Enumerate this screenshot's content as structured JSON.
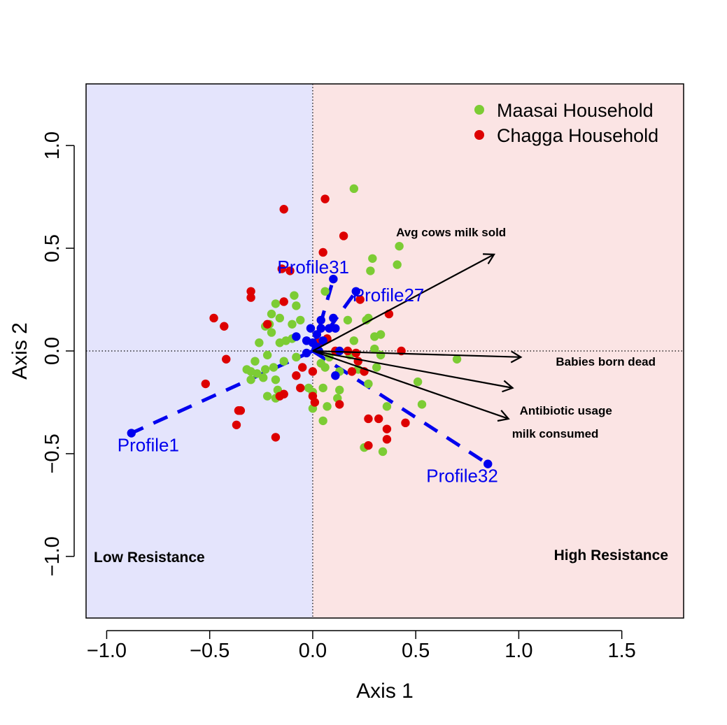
{
  "chart_data": {
    "type": "scatter",
    "xlabel": "Axis 1",
    "ylabel": "Axis 2",
    "xlim": [
      -1.1,
      1.8
    ],
    "ylim": [
      -1.3,
      1.3
    ],
    "x_ticks": [
      -1.0,
      -0.5,
      0.0,
      0.5,
      1.0,
      1.5
    ],
    "x_tick_labels": [
      "−1.0",
      "−0.5",
      "0.0",
      "0.5",
      "1.0",
      "1.5"
    ],
    "y_ticks": [
      -1.0,
      -0.5,
      0.0,
      0.5,
      1.0
    ],
    "y_tick_labels": [
      "−1.0",
      "−0.5",
      "0.0",
      "0.5",
      "1.0"
    ],
    "grid": false,
    "reference_lines": [
      {
        "axis": "x",
        "value": 0,
        "style": "dotted"
      },
      {
        "axis": "y",
        "value": 0,
        "style": "dotted"
      }
    ],
    "legend_position": "top-right",
    "regions": [
      {
        "label": "Low Resistance",
        "x_range": [
          -1.1,
          0.0
        ],
        "color": "#e4e4fc",
        "label_position": "bottom-left"
      },
      {
        "label": "High Resistance",
        "x_range": [
          0.0,
          1.8
        ],
        "color": "#fbe4e4",
        "label_position": "bottom-right"
      }
    ],
    "series": [
      {
        "name": "Maasai Household",
        "color": "#7ccc34",
        "points": [
          [
            0.2,
            0.79
          ],
          [
            0.29,
            0.45
          ],
          [
            0.42,
            0.51
          ],
          [
            0.41,
            0.42
          ],
          [
            0.28,
            0.39
          ],
          [
            0.06,
            0.29
          ],
          [
            -0.09,
            0.27
          ],
          [
            -0.08,
            0.22
          ],
          [
            -0.18,
            0.23
          ],
          [
            -0.2,
            0.18
          ],
          [
            -0.16,
            0.16
          ],
          [
            -0.06,
            0.15
          ],
          [
            -0.21,
            0.13
          ],
          [
            -0.23,
            0.12
          ],
          [
            -0.1,
            0.13
          ],
          [
            0.27,
            0.16
          ],
          [
            0.26,
            0.15
          ],
          [
            0.17,
            0.15
          ],
          [
            0.33,
            0.08
          ],
          [
            0.3,
            0.07
          ],
          [
            0.2,
            0.05
          ],
          [
            -0.2,
            0.09
          ],
          [
            -0.26,
            0.04
          ],
          [
            -0.16,
            0.04
          ],
          [
            -0.13,
            0.05
          ],
          [
            -0.1,
            0.06
          ],
          [
            -0.22,
            -0.02
          ],
          [
            -0.28,
            -0.05
          ],
          [
            -0.32,
            -0.09
          ],
          [
            -0.3,
            -0.1
          ],
          [
            -0.23,
            -0.09
          ],
          [
            -0.19,
            -0.08
          ],
          [
            -0.14,
            -0.05
          ],
          [
            -0.08,
            -0.03
          ],
          [
            -0.27,
            -0.11
          ],
          [
            -0.24,
            -0.13
          ],
          [
            -0.18,
            -0.14
          ],
          [
            -0.3,
            -0.14
          ],
          [
            -0.17,
            -0.19
          ],
          [
            -0.22,
            -0.22
          ],
          [
            -0.18,
            -0.23
          ],
          [
            0.04,
            -0.06
          ],
          [
            0.06,
            -0.08
          ],
          [
            0.13,
            -0.1
          ],
          [
            0.22,
            -0.09
          ],
          [
            0.31,
            -0.08
          ],
          [
            0.33,
            -0.02
          ],
          [
            0.3,
            0.01
          ],
          [
            0.7,
            -0.04
          ],
          [
            0.51,
            -0.15
          ],
          [
            0.53,
            -0.26
          ],
          [
            0.36,
            -0.27
          ],
          [
            0.27,
            -0.16
          ],
          [
            0.05,
            -0.18
          ],
          [
            0.12,
            -0.23
          ],
          [
            0.07,
            -0.27
          ],
          [
            0.0,
            -0.2
          ],
          [
            0.0,
            -0.28
          ],
          [
            0.05,
            -0.34
          ],
          [
            0.25,
            -0.47
          ],
          [
            0.34,
            -0.49
          ],
          [
            0.13,
            -0.19
          ],
          [
            -0.02,
            -0.18
          ],
          [
            0.18,
            -0.02
          ],
          [
            0.08,
            -0.03
          ]
        ]
      },
      {
        "name": "Chagga Household",
        "color": "#dd0000",
        "points": [
          [
            0.06,
            0.74
          ],
          [
            -0.14,
            0.69
          ],
          [
            0.15,
            0.56
          ],
          [
            0.05,
            0.48
          ],
          [
            -0.15,
            0.4
          ],
          [
            -0.11,
            0.39
          ],
          [
            -0.3,
            0.29
          ],
          [
            -0.3,
            0.26
          ],
          [
            0.23,
            0.25
          ],
          [
            -0.14,
            0.24
          ],
          [
            -0.48,
            0.16
          ],
          [
            -0.43,
            0.12
          ],
          [
            -0.22,
            0.13
          ],
          [
            0.37,
            0.18
          ],
          [
            0.07,
            0.06
          ],
          [
            0.03,
            0.04
          ],
          [
            0.11,
            0.0
          ],
          [
            0.17,
            0.0
          ],
          [
            0.21,
            -0.01
          ],
          [
            0.43,
            0.0
          ],
          [
            0.22,
            -0.05
          ],
          [
            -0.05,
            -0.08
          ],
          [
            0.0,
            -0.1
          ],
          [
            -0.42,
            -0.04
          ],
          [
            -0.52,
            -0.16
          ],
          [
            -0.08,
            -0.12
          ],
          [
            -0.06,
            -0.18
          ],
          [
            -0.14,
            -0.21
          ],
          [
            -0.16,
            -0.22
          ],
          [
            0.0,
            -0.22
          ],
          [
            0.01,
            -0.25
          ],
          [
            -0.35,
            -0.29
          ],
          [
            -0.36,
            -0.29
          ],
          [
            -0.37,
            -0.36
          ],
          [
            -0.18,
            -0.42
          ],
          [
            0.27,
            -0.33
          ],
          [
            0.32,
            -0.33
          ],
          [
            0.36,
            -0.38
          ],
          [
            0.36,
            -0.43
          ],
          [
            0.45,
            -0.35
          ],
          [
            0.27,
            -0.46
          ],
          [
            0.13,
            -0.26
          ],
          [
            0.19,
            -0.1
          ],
          [
            0.25,
            -0.1
          ]
        ]
      },
      {
        "name": "",
        "color": "#0000ee",
        "points": [
          [
            -0.88,
            -0.4
          ],
          [
            0.85,
            -0.55
          ],
          [
            0.1,
            0.35
          ],
          [
            0.21,
            0.29
          ],
          [
            -0.08,
            0.07
          ],
          [
            -0.01,
            0.11
          ],
          [
            0.04,
            0.15
          ],
          [
            0.04,
            0.11
          ],
          [
            0.08,
            0.11
          ],
          [
            0.11,
            0.11
          ],
          [
            0.1,
            0.16
          ],
          [
            -0.03,
            0.05
          ],
          [
            0.0,
            0.04
          ],
          [
            0.02,
            0.02
          ],
          [
            0.05,
            0.05
          ],
          [
            0.03,
            0.0
          ],
          [
            -0.03,
            -0.01
          ],
          [
            0.13,
            0.0
          ],
          [
            0.11,
            -0.12
          ],
          [
            0.02,
            0.08
          ]
        ]
      }
    ],
    "profiles": [
      {
        "label": "Profile1",
        "x": -0.88,
        "y": -0.4
      },
      {
        "label": "Profile31",
        "x": 0.1,
        "y": 0.35
      },
      {
        "label": "Profile27",
        "x": 0.21,
        "y": 0.29
      },
      {
        "label": "Profile32",
        "x": 0.85,
        "y": -0.55
      }
    ],
    "vectors": [
      {
        "label": "Avg cows milk sold",
        "x": 0.88,
        "y": 0.47
      },
      {
        "label": "Babies born dead",
        "x": 1.01,
        "y": -0.03
      },
      {
        "label": "Antibiotic usage",
        "x": 0.97,
        "y": -0.18
      },
      {
        "label": "milk consumed",
        "x": 0.95,
        "y": -0.33
      }
    ]
  }
}
